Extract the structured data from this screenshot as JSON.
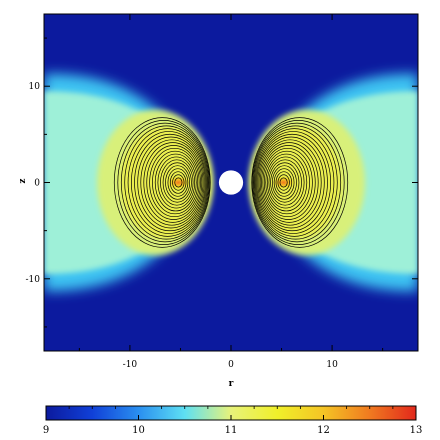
{
  "chart_data": {
    "type": "heatmap",
    "title": "",
    "xlabel": "r",
    "ylabel": "z",
    "xlim": [
      -18.5,
      18.5
    ],
    "ylim": [
      -17.5,
      17.5
    ],
    "x_ticks": [
      "-10",
      "0",
      "10"
    ],
    "y_ticks": [
      "10",
      "0",
      "-10"
    ],
    "x_tick_values": [
      -10,
      0,
      10
    ],
    "y_tick_values": [
      10,
      0,
      -10
    ],
    "colorbar": {
      "min": 9,
      "max": 13,
      "tick_labels": [
        "9",
        "10",
        "11",
        "12",
        "13"
      ],
      "tick_values": [
        9,
        10,
        11,
        12,
        13
      ],
      "colors": [
        "#0c1a9e",
        "#1040d8",
        "#2a8ff0",
        "#5ee0f2",
        "#e7f27a",
        "#f0f02a",
        "#f4c425",
        "#f07a20",
        "#e2281c"
      ]
    },
    "background_value": 9.15,
    "lobes": [
      {
        "side": "left",
        "center_r": -5.2,
        "center_z": 0,
        "peak_value": 12.5
      },
      {
        "side": "right",
        "center_r": 5.2,
        "center_z": 0,
        "peak_value": 12.5
      }
    ],
    "central_object": {
      "r": 0,
      "z": 0,
      "radius": 1.2,
      "color": "#ffffff"
    },
    "contours": "black density contours concentrated around each lobe peak",
    "grid": false
  }
}
